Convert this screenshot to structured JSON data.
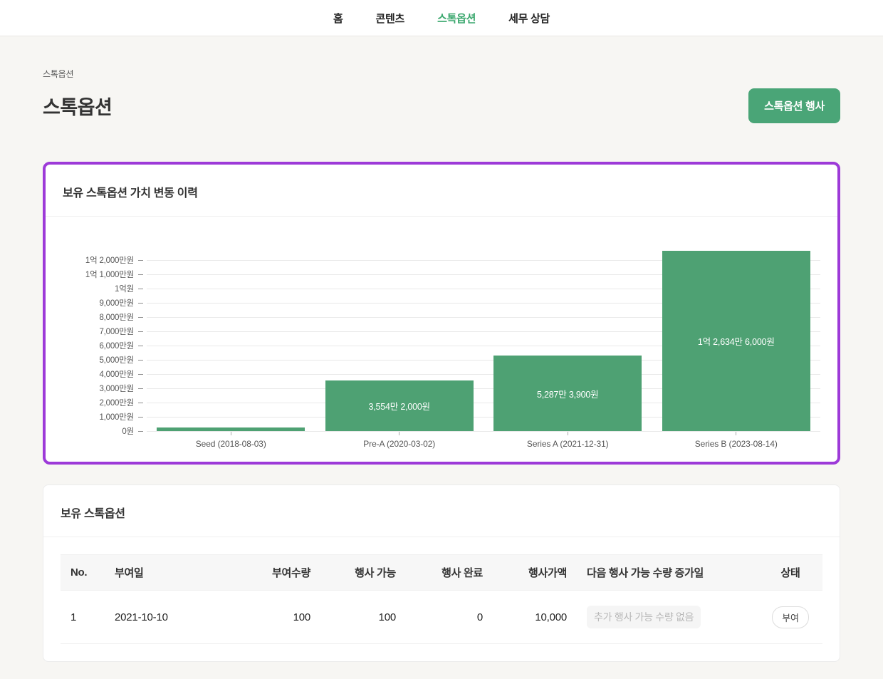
{
  "nav": {
    "items": [
      {
        "label": "홈",
        "active": false
      },
      {
        "label": "콘텐츠",
        "active": false
      },
      {
        "label": "스톡옵션",
        "active": true
      },
      {
        "label": "세무 상담",
        "active": false
      }
    ]
  },
  "page": {
    "breadcrumb": "스톡옵션",
    "title": "스톡옵션",
    "exercise_button_label": "스톡옵션 행사"
  },
  "chart_card": {
    "title": "보유 스톡옵션 가치 변동 이력"
  },
  "chart_data": {
    "type": "bar",
    "title": "보유 스톡옵션 가치 변동 이력",
    "categories": [
      "Seed (2018-08-03)",
      "Pre-A (2020-03-02)",
      "Series A (2021-12-31)",
      "Series B (2023-08-14)"
    ],
    "values": [
      2500000,
      35542000,
      52873900,
      126346000
    ],
    "bar_labels": [
      "",
      "3,554만 2,000원",
      "5,287만 3,900원",
      "1억 2,634만 6,000원"
    ],
    "y_tick_labels": [
      "0원",
      "1,000만원",
      "2,000만원",
      "3,000만원",
      "4,000만원",
      "5,000만원",
      "6,000만원",
      "7,000만원",
      "8,000만원",
      "9,000만원",
      "1억원",
      "1억 1,000만원",
      "1억 2,000만원"
    ],
    "y_tick_values": [
      0,
      10000000,
      20000000,
      30000000,
      40000000,
      50000000,
      60000000,
      70000000,
      80000000,
      90000000,
      100000000,
      110000000,
      120000000
    ],
    "ylim": [
      0,
      120000000
    ],
    "bar_color": "#4ea173",
    "grid": true,
    "legend": "none",
    "xlabel": "",
    "ylabel": ""
  },
  "table_card": {
    "title": "보유 스톡옵션",
    "columns": [
      {
        "label": "No.",
        "align": "left"
      },
      {
        "label": "부여일",
        "align": "left"
      },
      {
        "label": "부여수량",
        "align": "right"
      },
      {
        "label": "행사 가능",
        "align": "right"
      },
      {
        "label": "행사 완료",
        "align": "right"
      },
      {
        "label": "행사가액",
        "align": "right"
      },
      {
        "label": "다음 행사 가능 수량 증가일",
        "align": "left"
      },
      {
        "label": "상태",
        "align": "center"
      }
    ],
    "rows": [
      {
        "cells": [
          "1",
          "2021-10-10",
          "100",
          "100",
          "0",
          "10,000",
          "추가 행사 가능 수량 없음",
          "부여"
        ],
        "cell_kinds": [
          "text",
          "text",
          "text",
          "text",
          "text",
          "text",
          "chip",
          "badge"
        ]
      }
    ]
  },
  "colors": {
    "accent_green": "#3aa76d",
    "button_green": "#4aa577",
    "bar_green": "#4ea173",
    "highlight_purple": "#9d3ad8",
    "page_bg": "#f7f6f3"
  }
}
